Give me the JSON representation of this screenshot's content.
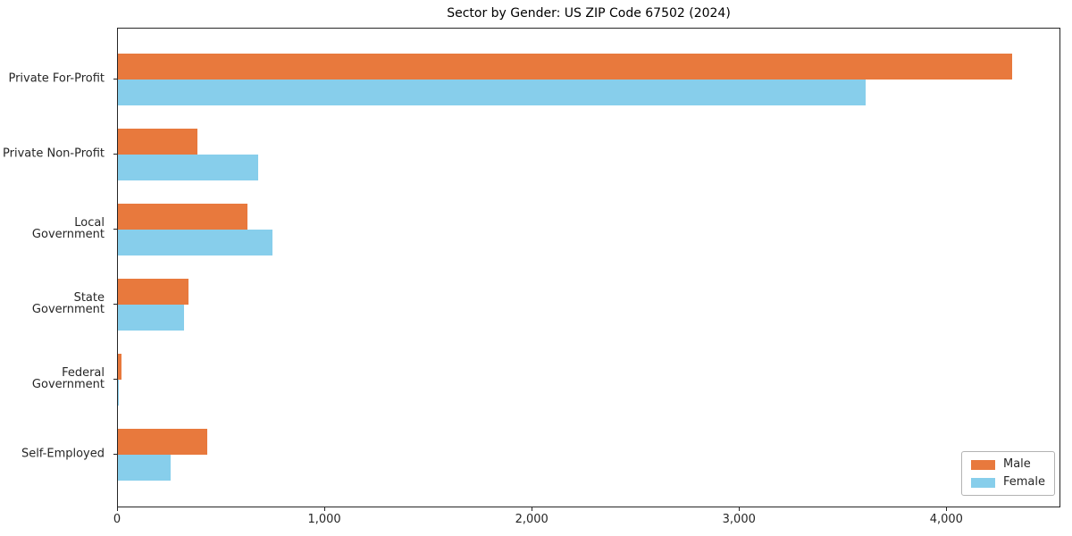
{
  "chart_data": {
    "type": "bar",
    "orientation": "horizontal",
    "title": "Sector by Gender: US ZIP Code 67502 (2024)",
    "categories": [
      "Private For-Profit",
      "Private Non-Profit",
      "Local Government",
      "State Government",
      "Federal Government",
      "Self-Employed"
    ],
    "series": [
      {
        "name": "Male",
        "color": "#e8793d",
        "values": [
          4322,
          385,
          625,
          340,
          18,
          433
        ]
      },
      {
        "name": "Female",
        "color": "#87ceeb",
        "values": [
          3612,
          676,
          745,
          320,
          4,
          255
        ]
      }
    ],
    "xlabel": "",
    "ylabel": "",
    "xlim": [
      0,
      4550
    ],
    "xticks": [
      {
        "value": 0,
        "label": "0"
      },
      {
        "value": 1000,
        "label": "1,000"
      },
      {
        "value": 2000,
        "label": "2,000"
      },
      {
        "value": 3000,
        "label": "3,000"
      },
      {
        "value": 4000,
        "label": "4,000"
      }
    ],
    "grid": false,
    "legend": {
      "position": "lower right"
    }
  },
  "colors": {
    "background": "#ffffff",
    "spine": "#262626",
    "text": "#262626",
    "legend_border": "#b3b3b3",
    "male": "#e8793d",
    "female": "#87ceeb"
  }
}
